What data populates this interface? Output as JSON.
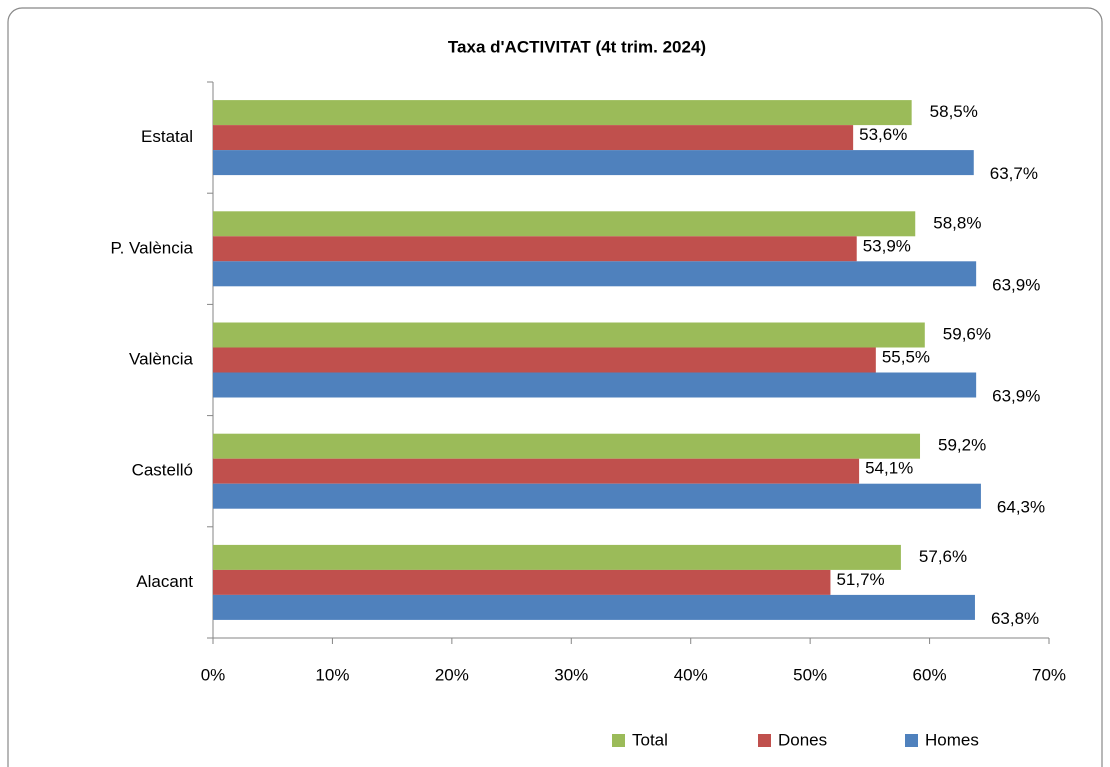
{
  "chart_data": {
    "type": "hbar",
    "title": "Taxa d'ACTIVITAT (4t trim. 2024)",
    "categories": [
      "Estatal",
      "P. València",
      "València",
      "Castelló",
      "Alacant"
    ],
    "series": [
      {
        "name": "Total",
        "color": "#9bbb59",
        "values": [
          58.5,
          58.8,
          59.6,
          59.2,
          57.6
        ],
        "value_labels": [
          "58,5%",
          "58,8%",
          "59,6%",
          "59,2%",
          "57,6%"
        ]
      },
      {
        "name": "Dones",
        "color": "#c0504d",
        "values": [
          53.6,
          53.9,
          55.5,
          54.1,
          51.7
        ],
        "value_labels": [
          "53,6%",
          "53,9%",
          "55,5%",
          "54,1%",
          "51,7%"
        ]
      },
      {
        "name": "Homes",
        "color": "#4f81bd",
        "values": [
          63.7,
          63.9,
          63.9,
          64.3,
          63.8
        ],
        "value_labels": [
          "63,7%",
          "63,9%",
          "63,9%",
          "64,3%",
          "63,8%"
        ]
      }
    ],
    "xlim": [
      0,
      70
    ],
    "xticks": [
      {
        "value": 0,
        "label": "0%"
      },
      {
        "value": 10,
        "label": "10%"
      },
      {
        "value": 20,
        "label": "20%"
      },
      {
        "value": 30,
        "label": "30%"
      },
      {
        "value": 40,
        "label": "40%"
      },
      {
        "value": 50,
        "label": "50%"
      },
      {
        "value": 60,
        "label": "60%"
      },
      {
        "value": 70,
        "label": "70%"
      }
    ],
    "grid": false,
    "legend": "bottom"
  }
}
